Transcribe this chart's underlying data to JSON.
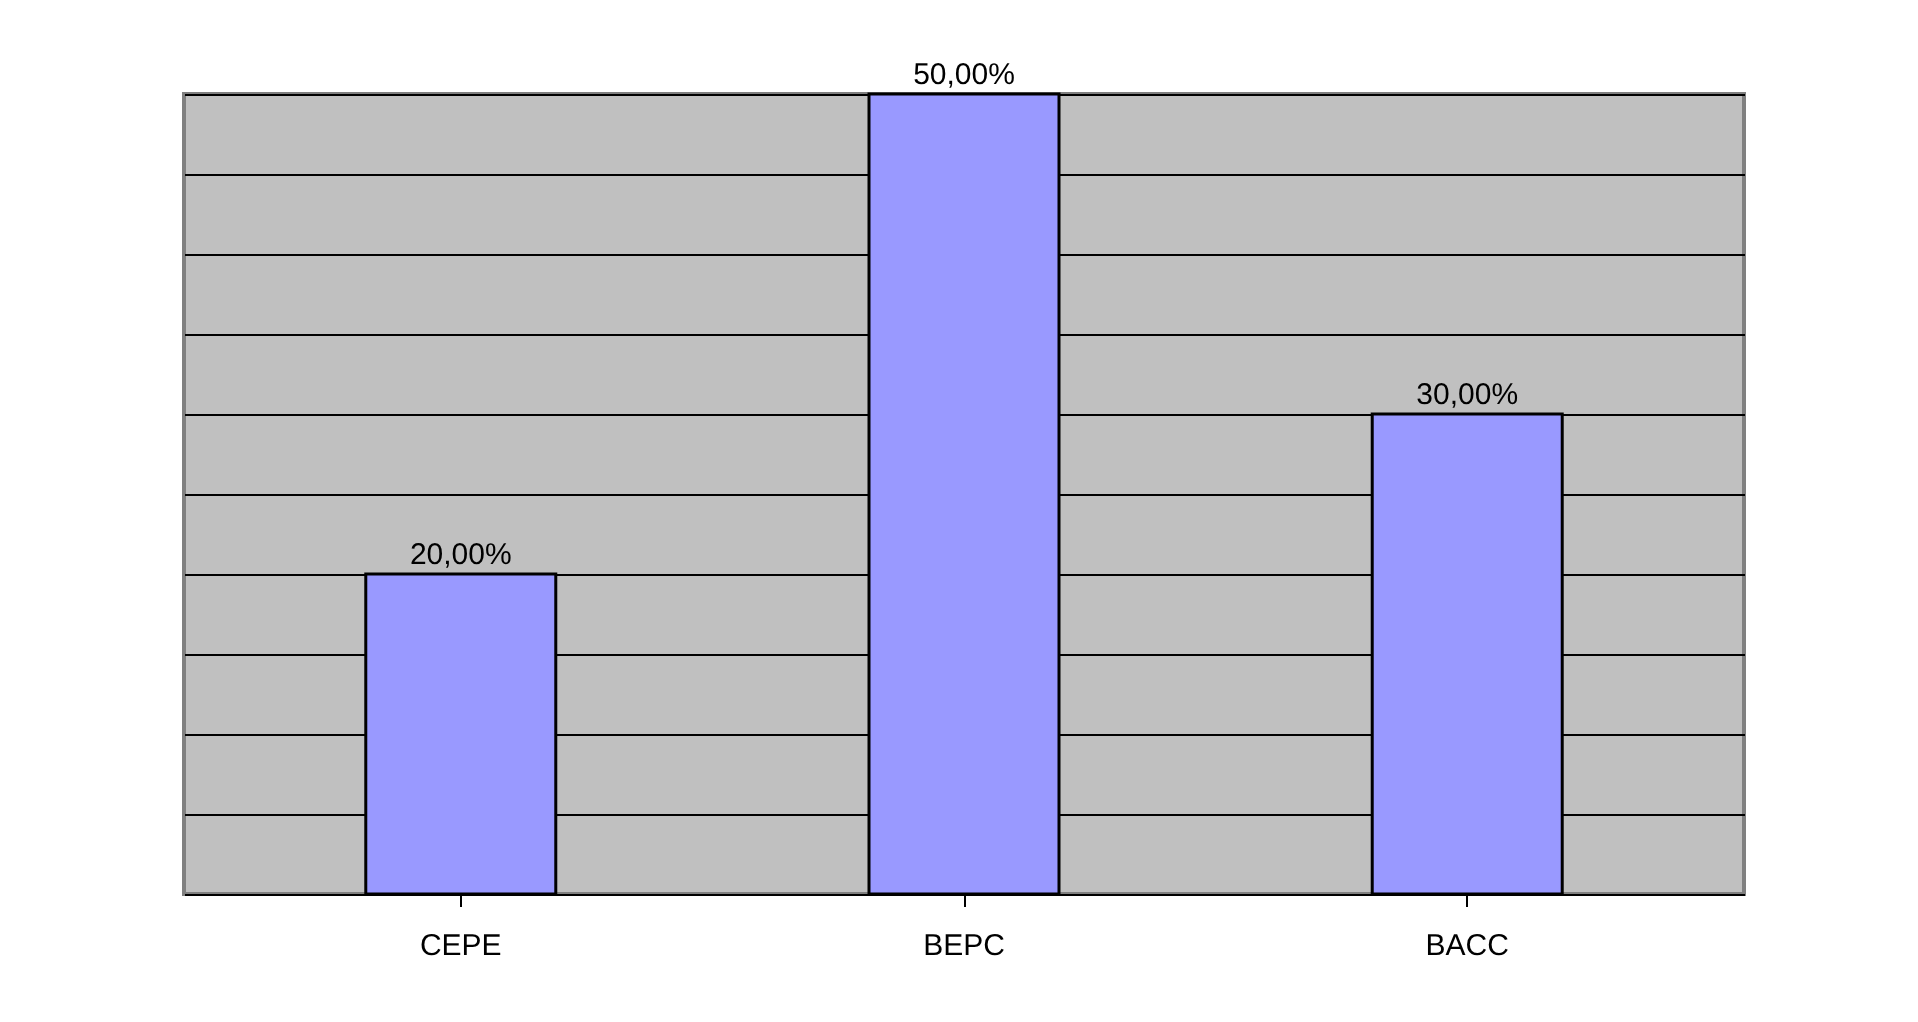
{
  "chart_data": {
    "type": "bar",
    "categories": [
      "CEPE",
      "BEPC",
      "BACC"
    ],
    "values": [
      20,
      50,
      30
    ],
    "value_labels": [
      "20,00%",
      "50,00%",
      "30,00%"
    ],
    "color": "#9999ff",
    "ylim": [
      0,
      50
    ],
    "yticks": [
      {
        "value": 0,
        "label": null
      },
      {
        "value": 5,
        "label": null
      },
      {
        "value": 10,
        "label": null
      },
      {
        "value": 15,
        "label": null
      },
      {
        "value": 20,
        "label": null
      },
      {
        "value": 25,
        "label": null
      },
      {
        "value": 30,
        "label": null
      },
      {
        "value": 35,
        "label": null
      },
      {
        "value": 40,
        "label": null
      },
      {
        "value": 45,
        "label": null
      },
      {
        "value": 50,
        "label": null
      }
    ],
    "grid": "y",
    "tick_labels": "x",
    "legend": false
  }
}
